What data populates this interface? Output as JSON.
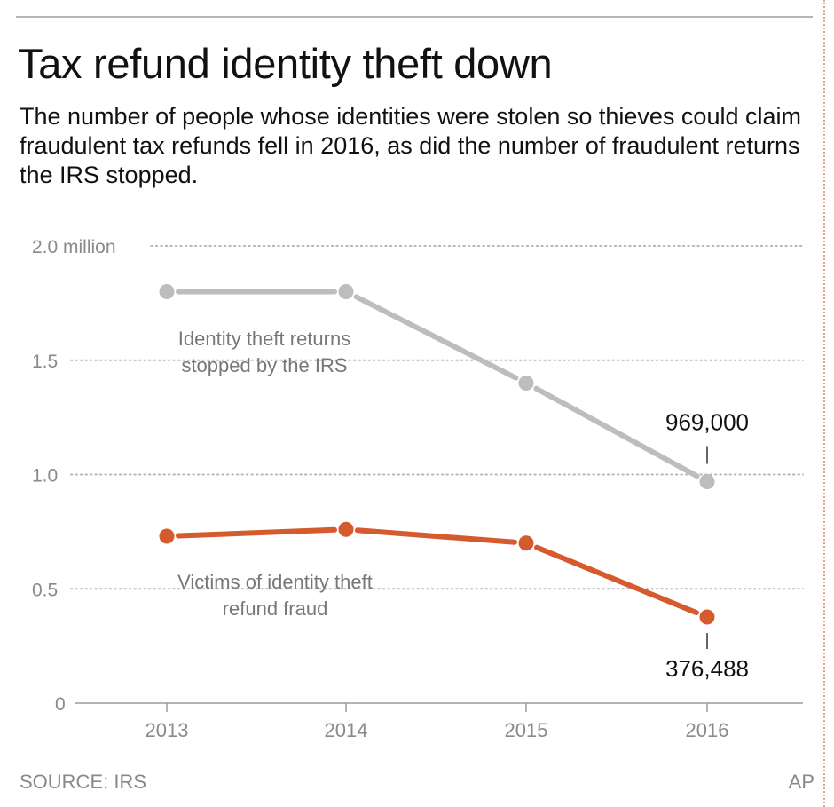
{
  "header": {
    "title": "Tax refund identity theft down",
    "subtitle": "The number of people whose identities were stolen so thieves could claim fraudulent tax refunds fell in 2016, as did the number of fraudulent returns the IRS stopped."
  },
  "footer": {
    "source": "SOURCE: IRS",
    "credit": "AP"
  },
  "chart_data": {
    "type": "line",
    "title": "Tax refund identity theft down",
    "x": [
      2013,
      2014,
      2015,
      2016
    ],
    "x_tick_labels": [
      "2013",
      "2014",
      "2015",
      "2016"
    ],
    "y_ticks": [
      0,
      0.5,
      1.0,
      1.5,
      2.0
    ],
    "y_tick_labels": [
      "0",
      "0.5",
      "1.0",
      "1.5",
      "2.0 million"
    ],
    "ylim": [
      0,
      2.0
    ],
    "grid": "dotted horizontal",
    "series": [
      {
        "name": "Identity theft returns stopped by the IRS",
        "label_lines": [
          "Identity theft returns",
          "stopped by the IRS"
        ],
        "values": [
          1.8,
          1.8,
          1.4,
          0.969
        ],
        "end_label": "969,000",
        "color": "#bdbdbd"
      },
      {
        "name": "Victims of identity theft refund fraud",
        "label_lines": [
          "Victims of identity theft",
          "refund fraud"
        ],
        "values": [
          0.73,
          0.76,
          0.7,
          0.376488
        ],
        "end_label": "376,488",
        "color": "#d55a2e"
      }
    ]
  }
}
